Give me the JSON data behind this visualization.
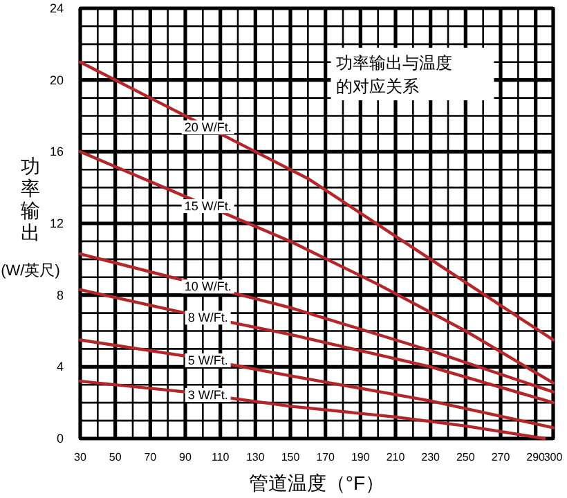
{
  "chart_data": {
    "type": "line",
    "title": "功率输出与温度的对应关系",
    "xlabel": "管道温度（°F）",
    "ylabel": "功率输出(W/英尺)",
    "xlim": [
      30,
      300
    ],
    "ylim": [
      0,
      24
    ],
    "xticks": [
      30,
      50,
      70,
      90,
      110,
      130,
      150,
      170,
      190,
      210,
      230,
      250,
      270,
      290,
      300
    ],
    "yticks": [
      0,
      4,
      8,
      12,
      16,
      20,
      24
    ],
    "grid": true,
    "marker": "none",
    "line_style": "solid",
    "series": [
      {
        "name": "20 W/Ft.",
        "color": "#b5262a",
        "x": [
          30,
          120,
          160,
          230,
          300
        ],
        "values": [
          21,
          16.5,
          14.5,
          10,
          5.5
        ]
      },
      {
        "name": "15 W/Ft.",
        "color": "#b5262a",
        "x": [
          30,
          90,
          150,
          200,
          250,
          300
        ],
        "values": [
          16,
          13.5,
          11,
          8.6,
          6,
          3.1
        ]
      },
      {
        "name": "10 W/Ft.",
        "color": "#b5262a",
        "x": [
          30,
          90,
          150,
          230,
          300
        ],
        "values": [
          10.3,
          8.8,
          7.3,
          4.9,
          2.6
        ]
      },
      {
        "name": "8 W/Ft.",
        "color": "#b5262a",
        "x": [
          30,
          90,
          150,
          230,
          300
        ],
        "values": [
          8.3,
          7,
          5.8,
          4,
          2
        ]
      },
      {
        "name": "5 W/Ft.",
        "color": "#b5262a",
        "x": [
          30,
          90,
          150,
          230,
          300
        ],
        "values": [
          5.5,
          4.6,
          3.5,
          2.1,
          0.6
        ]
      },
      {
        "name": "3 W/Ft.",
        "color": "#b5262a",
        "x": [
          30,
          90,
          150,
          210,
          250,
          295
        ],
        "values": [
          3.2,
          2.6,
          1.8,
          1.2,
          0.7,
          0
        ]
      }
    ]
  }
}
